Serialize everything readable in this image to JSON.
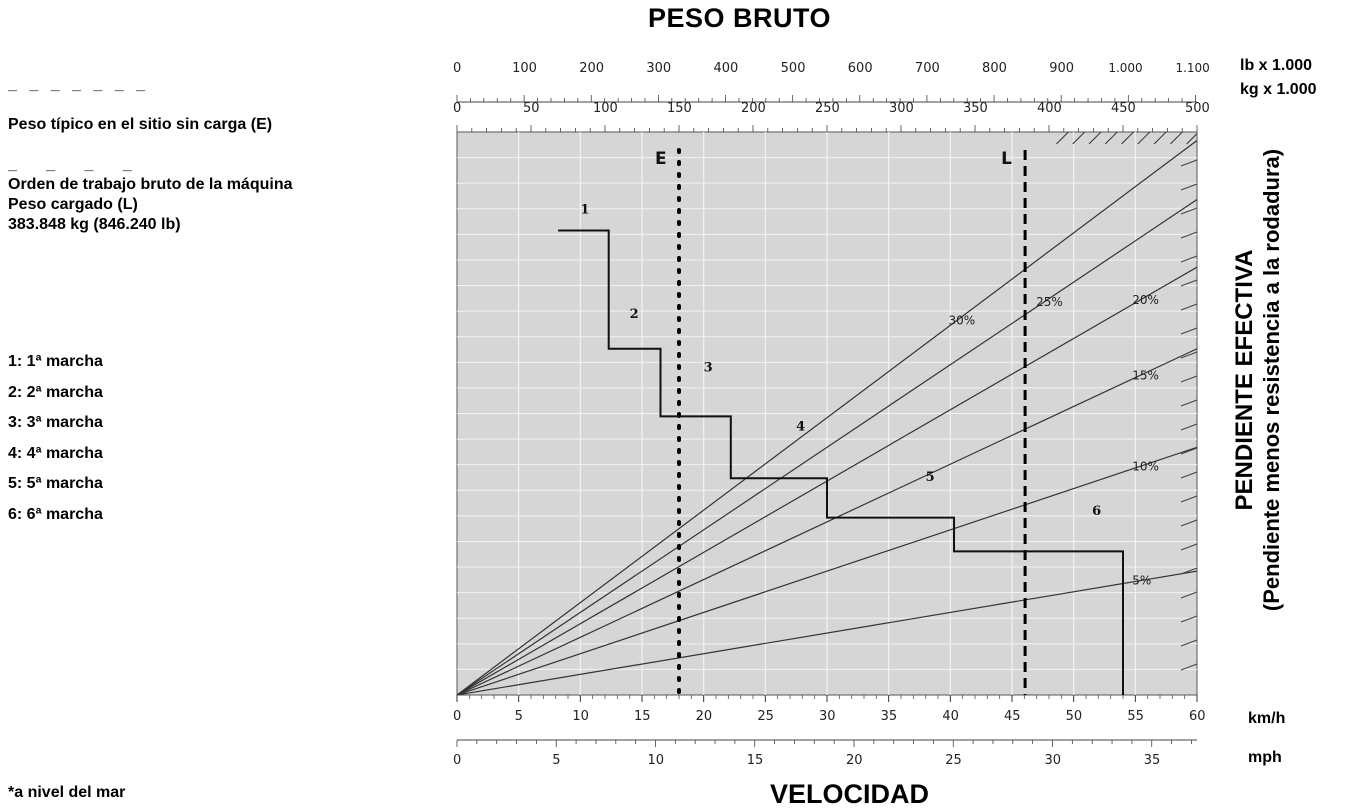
{
  "legend": {
    "empty_dash": "_ _ _ _ _ _ _",
    "empty_text": "Peso típico en el sitio sin carga (E)",
    "loaded_dash": "_   _   _   _",
    "loaded_line1": "Orden de trabajo bruto de la máquina",
    "loaded_line2": "Peso cargado (L)",
    "loaded_line3": "383.848 kg (846.240 lb)",
    "gears": [
      "1: 1ª marcha",
      "2: 2ª marcha",
      "3: 3ª marcha",
      "4: 4ª marcha",
      "5: 5ª marcha",
      "6: 6ª marcha"
    ],
    "footnote": "*a nivel del mar"
  },
  "chart_data": {
    "type": "line",
    "title": "PESO BRUTO",
    "xlabel": "VELOCIDAD",
    "ylabel": "PENDIENTE EFECTIVA",
    "ylabel_sub": "(Pendiente menos resistencia a la rodadura)",
    "x_units": {
      "primary": "km/h",
      "secondary": "mph"
    },
    "top_units": {
      "lb": "lb x 1.000",
      "kg": "kg x 1.000"
    },
    "xlim": [
      0,
      60
    ],
    "x_ticks": [
      "0",
      "5",
      "10",
      "15",
      "20",
      "25",
      "30",
      "35",
      "40",
      "45",
      "50",
      "55",
      "60"
    ],
    "mph_ticks": [
      "0",
      "5",
      "10",
      "15",
      "20",
      "25",
      "30",
      "35"
    ],
    "mph_lim": [
      0,
      37.28
    ],
    "kg_lim": [
      0,
      500
    ],
    "kg_ticks": [
      "0",
      "50",
      "100",
      "150",
      "200",
      "250",
      "300",
      "350",
      "400",
      "450",
      "500"
    ],
    "lb_lim": [
      0,
      1102.3
    ],
    "lb_ticks": [
      "0",
      "100",
      "200",
      "300",
      "400",
      "500",
      "600",
      "700",
      "800",
      "900",
      "1.000",
      "1.100"
    ],
    "grade_lines": [
      {
        "label": "5%",
        "value": 5,
        "y_at_right": 0.22
      },
      {
        "label": "10%",
        "value": 10,
        "y_at_right": 0.44
      },
      {
        "label": "15%",
        "value": 15,
        "y_at_right": 0.615
      },
      {
        "label": "20%",
        "value": 20,
        "y_at_right": 0.76
      },
      {
        "label": "25%",
        "value": 25,
        "y_at_right": 0.88
      },
      {
        "label": "30%",
        "value": 30,
        "y_at_right": 0.985
      }
    ],
    "markers": [
      {
        "label": "E",
        "kg": 150,
        "style": "dotted"
      },
      {
        "label": "L",
        "kg": 383.848,
        "style": "dashed"
      }
    ],
    "rimpull_curve": [
      [
        8.2,
        0.825
      ],
      [
        12.3,
        0.825
      ],
      [
        12.3,
        0.615
      ],
      [
        16.5,
        0.615
      ],
      [
        16.5,
        0.495
      ],
      [
        22.2,
        0.495
      ],
      [
        22.2,
        0.385
      ],
      [
        30,
        0.385
      ],
      [
        30,
        0.315
      ],
      [
        40.3,
        0.315
      ],
      [
        40.3,
        0.255
      ],
      [
        54,
        0.255
      ],
      [
        54,
        0
      ]
    ],
    "gear_labels": [
      {
        "label": "1",
        "x": 10,
        "y": 0.855
      },
      {
        "label": "2",
        "x": 14,
        "y": 0.67
      },
      {
        "label": "3",
        "x": 20,
        "y": 0.575
      },
      {
        "label": "4",
        "x": 27.5,
        "y": 0.47
      },
      {
        "label": "5",
        "x": 38,
        "y": 0.38
      },
      {
        "label": "6",
        "x": 51.5,
        "y": 0.32
      }
    ]
  }
}
